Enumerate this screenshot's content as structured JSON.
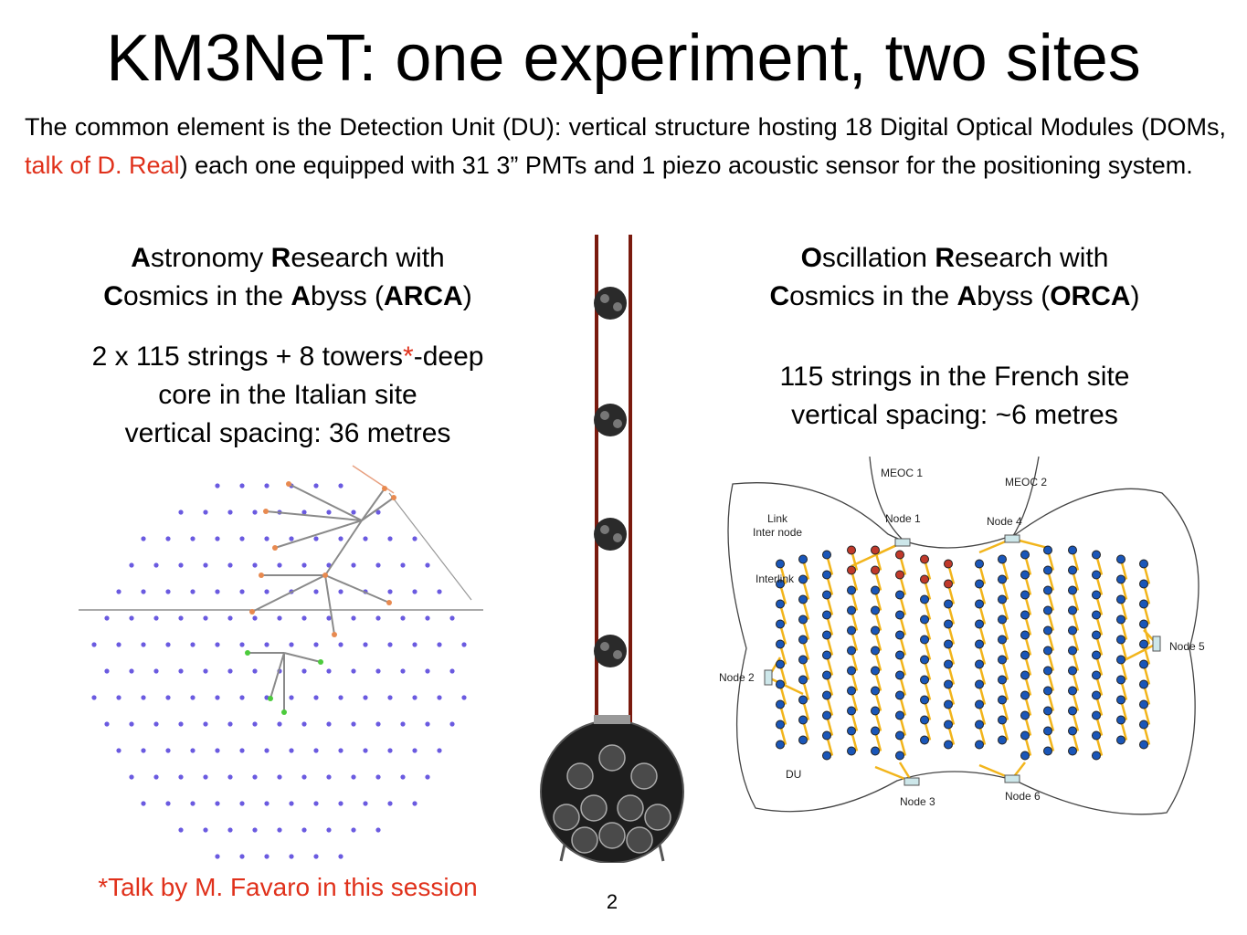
{
  "title": "KM3NeT: one experiment, two sites",
  "intro": {
    "part1": "The common element is the Detection Unit (DU): vertical structure hosting 18 Digital Optical Modules (DOMs, ",
    "highlight": "talk of D. Real",
    "part2": ") each one equipped with 31 3” PMTs and 1 piezo acoustic sensor for the positioning system."
  },
  "arca": {
    "head_l1": [
      "A",
      "stronomy ",
      "R",
      "esearch with"
    ],
    "head_l2": [
      "C",
      "osmics in the ",
      "A",
      "byss (",
      "ARCA",
      ")"
    ],
    "line1a": "2 x 115 strings + 8 towers",
    "star": "*",
    "line1b": "-deep",
    "line2": "core in the Italian site",
    "line3": "vertical spacing: 36 metres"
  },
  "orca": {
    "head_l1": [
      "O",
      "scillation ",
      "R",
      "esearch with"
    ],
    "head_l2": [
      "C",
      "osmics in the ",
      "A",
      "byss (",
      "ORCA",
      ")"
    ],
    "line1": "115 strings in the French site",
    "line2": "vertical spacing: ~6 metres"
  },
  "orca_map": {
    "labels": {
      "meoc1": "MEOC 1",
      "meoc2": "MEOC 2",
      "link1": "Link",
      "link2": "Inter node",
      "interlink": "Interlink",
      "node1": "Node 1",
      "node2": "Node 2",
      "node3": "Node 3",
      "node4": "Node 4",
      "node5": "Node 5",
      "node6": "Node 6",
      "du": "DU"
    }
  },
  "footnote": "*Talk by M. Favaro in this session",
  "page_number": "2",
  "colors": {
    "accent_red": "#e0311b",
    "du_string": "#7a1a0e",
    "orca_node": "#1a56b8",
    "orca_link": "#f2b51c",
    "arca_dot": "#6a5ae0"
  }
}
